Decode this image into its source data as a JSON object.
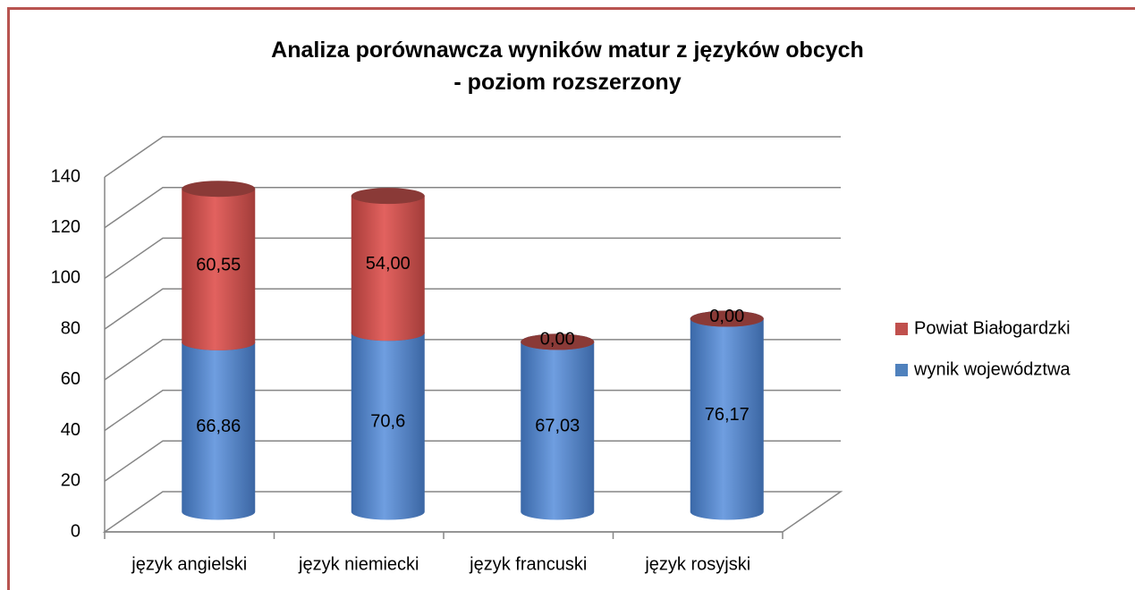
{
  "chart_data": {
    "type": "bar3d-stacked",
    "title": "Analiza porównawcza wyników matur z języków obcych\n- poziom rozszerzony",
    "categories": [
      "język angielski",
      "język niemiecki",
      "język francuski",
      "język rosyjski"
    ],
    "series": [
      {
        "name": "wynik województwa",
        "color": "#4f81bd",
        "values": [
          66.86,
          70.6,
          67.03,
          76.17
        ],
        "value_labels": [
          "66,86",
          "70,6",
          "67,03",
          "76,17"
        ]
      },
      {
        "name": "Powiat Białogardzki",
        "color": "#c0504d",
        "values": [
          60.55,
          54,
          0,
          0
        ],
        "value_labels": [
          "60,55",
          "54,00",
          "0,00",
          "0,00"
        ]
      }
    ],
    "ylim": [
      0,
      140
    ],
    "yticks": [
      0,
      20,
      40,
      60,
      80,
      100,
      120,
      140
    ],
    "grid": true,
    "legend": "right"
  }
}
